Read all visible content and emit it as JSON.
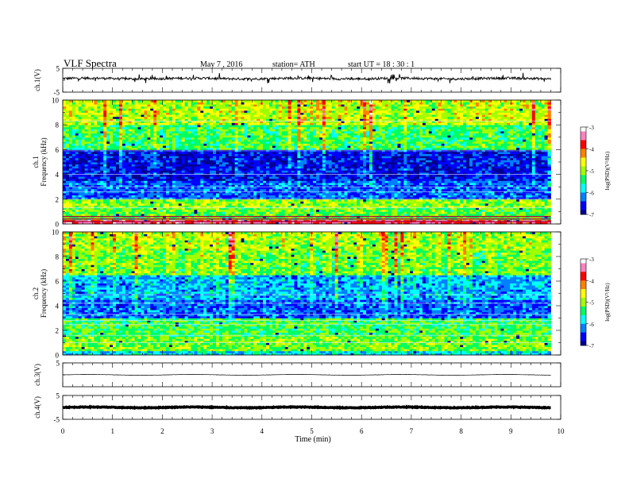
{
  "header": {
    "title": "VLF  Spectra",
    "date": "May 7  , 2016",
    "station": "station= ATH",
    "start": "start  UT  =   18 : 30 : 1"
  },
  "chart_data": [
    {
      "type": "line",
      "panel": "ch1-waveform",
      "ylabel": "ch.1(V)",
      "ylim": [
        -5,
        5
      ],
      "yticks": [
        "5",
        "-5"
      ],
      "xlim": [
        0,
        10
      ],
      "baseline_v": 0.7,
      "noise_amplitude_v": 0.5,
      "spike_amplitude_v": 2.0
    },
    {
      "type": "heatmap",
      "panel": "ch1-spectrogram",
      "ylabel": "ch.1\nFrequency  (kHz)",
      "ylabel_lines": [
        "ch.1",
        "Frequency  (kHz)"
      ],
      "ylim": [
        0,
        10
      ],
      "yticks": [
        "0",
        "2",
        "4",
        "6",
        "8",
        "10"
      ],
      "xlim": [
        0,
        9.8
      ],
      "colorbar": {
        "label": "log(PSD)(V²/Hz)",
        "range": [
          -7,
          -3
        ],
        "ticks": [
          "-3",
          "-4",
          "-5",
          "-6",
          "-7"
        ],
        "colors": [
          "#000090",
          "#0000ff",
          "#0080ff",
          "#00ffff",
          "#00ff60",
          "#a0ff00",
          "#ffff00",
          "#ff8000",
          "#ff0000",
          "#ff80c0",
          "#ffffff"
        ]
      },
      "bands": [
        {
          "f_low": 0,
          "f_high": 0.4,
          "log_psd": -3.6
        },
        {
          "f_low": 0.4,
          "f_high": 1.3,
          "log_psd": -5.2
        },
        {
          "f_low": 1.3,
          "f_high": 2.0,
          "log_psd": -5.0
        },
        {
          "f_low": 2.0,
          "f_high": 3.5,
          "log_psd": -6.3
        },
        {
          "f_low": 3.5,
          "f_high": 6.0,
          "log_psd": -6.6
        },
        {
          "f_low": 6.0,
          "f_high": 8.0,
          "log_psd": -5.3
        },
        {
          "f_low": 8.0,
          "f_high": 10.0,
          "log_psd": -4.8
        }
      ],
      "lines_khz": [
        0.2,
        0.4,
        0.6,
        1.3,
        2.0,
        2.6,
        3.0,
        4.0,
        5.9,
        8.3
      ]
    },
    {
      "type": "heatmap",
      "panel": "ch2-spectrogram",
      "ylabel": "ch.2\nFrequency  (kHz)",
      "ylabel_lines": [
        "ch.2",
        "Frequency  (kHz)"
      ],
      "ylim": [
        0,
        10
      ],
      "yticks": [
        "0",
        "2",
        "4",
        "6",
        "8",
        "10"
      ],
      "xlim": [
        0,
        9.8
      ],
      "colorbar": {
        "label": "log(PSD)(V²/Hz)",
        "range": [
          -7,
          -3
        ],
        "ticks": [
          "-3",
          "-4",
          "-5",
          "-6",
          "-7"
        ],
        "colors": [
          "#000090",
          "#0000ff",
          "#0080ff",
          "#00ffff",
          "#00ff60",
          "#a0ff00",
          "#ffff00",
          "#ff8000",
          "#ff0000",
          "#ff80c0",
          "#ffffff"
        ]
      },
      "bands": [
        {
          "f_low": 0,
          "f_high": 0.3,
          "log_psd": -5.8
        },
        {
          "f_low": 0.3,
          "f_high": 1.5,
          "log_psd": -5.1
        },
        {
          "f_low": 1.5,
          "f_high": 3.0,
          "log_psd": -5.3
        },
        {
          "f_low": 3.0,
          "f_high": 4.5,
          "log_psd": -6.3
        },
        {
          "f_low": 4.5,
          "f_high": 6.5,
          "log_psd": -6.0
        },
        {
          "f_low": 6.5,
          "f_high": 8.5,
          "log_psd": -5.1
        },
        {
          "f_low": 8.5,
          "f_high": 10.0,
          "log_psd": -4.9
        }
      ],
      "lines_khz": [
        1.0,
        1.6,
        2.5,
        2.8,
        3.3,
        4.2,
        4.9
      ]
    },
    {
      "type": "line",
      "panel": "ch3-waveform",
      "ylabel": "ch.3(V)",
      "ylim": [
        -5,
        5
      ],
      "yticks": [
        "5"
      ],
      "xlim": [
        0,
        10
      ],
      "baseline_v": 0.0,
      "noise_amplitude_v": 0.05,
      "spike_amplitude_v": 0.0
    },
    {
      "type": "line",
      "panel": "ch4-waveform",
      "ylabel": "ch.4(V)",
      "ylim": [
        -5,
        5
      ],
      "yticks": [
        "5",
        "-5"
      ],
      "xlim": [
        0,
        10
      ],
      "baseline_v": 0.0,
      "noise_amplitude_v": 0.15,
      "spike_amplitude_v": 0.0
    }
  ],
  "x_axis": {
    "label": "Time  (min)",
    "ticks": [
      "0",
      "1",
      "2",
      "3",
      "4",
      "5",
      "6",
      "7",
      "8",
      "9",
      "10"
    ],
    "range": [
      0,
      10
    ]
  }
}
